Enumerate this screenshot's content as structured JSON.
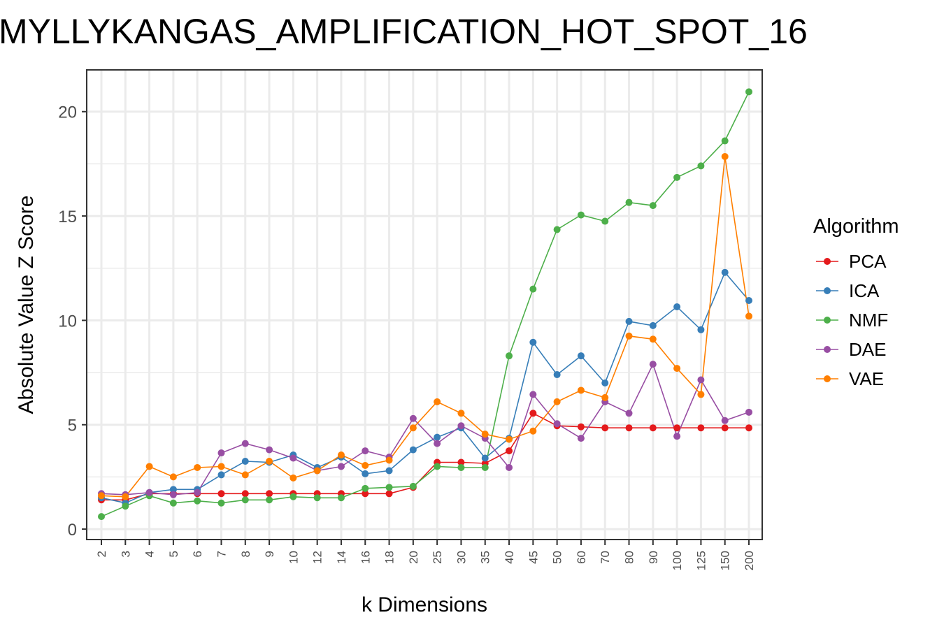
{
  "chart_data": {
    "type": "line",
    "title": "MYLLYKANGAS_AMPLIFICATION_HOT_SPOT_16",
    "xlabel": "k Dimensions",
    "ylabel": "Absolute Value Z Score",
    "categories": [
      "2",
      "3",
      "4",
      "5",
      "6",
      "7",
      "8",
      "9",
      "10",
      "12",
      "14",
      "16",
      "18",
      "20",
      "25",
      "30",
      "35",
      "40",
      "45",
      "50",
      "60",
      "70",
      "80",
      "90",
      "100",
      "125",
      "150",
      "200"
    ],
    "ylim": [
      -0.5,
      22
    ],
    "yticks": [
      0,
      5,
      10,
      15,
      20
    ],
    "grid": true,
    "legend_title": "Algorithm",
    "legend_position": "right",
    "series": [
      {
        "name": "PCA",
        "color": "#e41a1c",
        "values": [
          1.4,
          1.4,
          1.7,
          1.7,
          1.7,
          1.7,
          1.7,
          1.7,
          1.7,
          1.7,
          1.7,
          1.7,
          1.7,
          2.0,
          3.2,
          3.2,
          3.15,
          3.75,
          5.55,
          4.95,
          4.9,
          4.85,
          4.85,
          4.85,
          4.85,
          4.85,
          4.85,
          4.85
        ]
      },
      {
        "name": "ICA",
        "color": "#377eb8",
        "values": [
          1.5,
          1.25,
          1.75,
          1.9,
          1.9,
          2.6,
          3.25,
          3.2,
          3.55,
          2.95,
          3.45,
          2.65,
          2.8,
          3.8,
          4.4,
          4.85,
          3.4,
          4.35,
          8.95,
          7.4,
          8.3,
          7.0,
          9.95,
          9.75,
          10.65,
          9.55,
          12.3,
          10.95
        ]
      },
      {
        "name": "NMF",
        "color": "#4daf4a",
        "values": [
          0.6,
          1.1,
          1.6,
          1.25,
          1.35,
          1.25,
          1.4,
          1.4,
          1.55,
          1.5,
          1.5,
          1.95,
          2.0,
          2.05,
          3.0,
          2.95,
          2.95,
          8.3,
          11.5,
          14.35,
          15.05,
          14.75,
          15.65,
          15.5,
          16.85,
          17.4,
          18.6,
          20.95
        ]
      },
      {
        "name": "DAE",
        "color": "#984ea3",
        "values": [
          1.7,
          1.65,
          1.75,
          1.65,
          1.75,
          3.65,
          4.1,
          3.8,
          3.4,
          2.8,
          3.0,
          3.75,
          3.45,
          5.3,
          4.1,
          4.95,
          4.35,
          2.95,
          6.45,
          5.05,
          4.35,
          6.1,
          5.55,
          7.9,
          4.45,
          7.15,
          5.2,
          5.6
        ]
      },
      {
        "name": "VAE",
        "color": "#ff7f00",
        "values": [
          1.6,
          1.55,
          3.0,
          2.5,
          2.95,
          3.0,
          2.6,
          3.25,
          2.45,
          2.8,
          3.55,
          3.05,
          3.3,
          4.85,
          6.1,
          5.55,
          4.55,
          4.3,
          4.7,
          6.1,
          6.65,
          6.3,
          9.25,
          9.1,
          7.7,
          6.45,
          17.85,
          10.2
        ]
      }
    ]
  }
}
